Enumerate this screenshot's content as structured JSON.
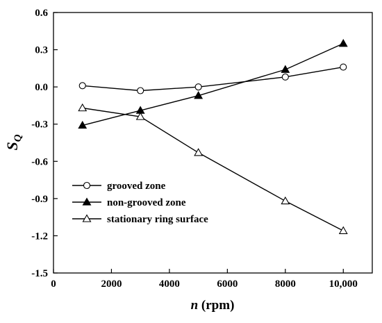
{
  "chart_data": {
    "type": "line",
    "xlim": [
      0,
      11000
    ],
    "ylim": [
      -1.5,
      0.6
    ],
    "x_ticks": [
      0,
      2000,
      4000,
      6000,
      8000,
      10000
    ],
    "x_tick_labels": [
      "0",
      "2000",
      "4000",
      "6000",
      "8000",
      "10,000"
    ],
    "y_ticks": [
      0.6,
      0.3,
      0.0,
      -0.3,
      -0.6,
      -0.9,
      -1.2,
      -1.5
    ],
    "y_tick_labels": [
      "0.6",
      "0.3",
      "0.0",
      "-0.3",
      "-0.6",
      "-0.9",
      "-1.2",
      "-1.5"
    ],
    "xlabel_var": "n",
    "xlabel_unit": " (rpm)",
    "ylabel_main": "S",
    "ylabel_sub": "Q",
    "grid": false,
    "legend_position": "bottom-left",
    "series": [
      {
        "name": "grooved zone",
        "marker": "circle-open",
        "x": [
          1000,
          3000,
          5000,
          8000,
          10000
        ],
        "y": [
          0.01,
          -0.03,
          0.0,
          0.08,
          0.16
        ]
      },
      {
        "name": "non-grooved zone",
        "marker": "triangle-filled",
        "x": [
          1000,
          3000,
          5000,
          8000,
          10000
        ],
        "y": [
          -0.31,
          -0.19,
          -0.07,
          0.14,
          0.35
        ]
      },
      {
        "name": "stationary ring surface",
        "marker": "triangle-open",
        "x": [
          1000,
          3000,
          5000,
          8000,
          10000
        ],
        "y": [
          -0.17,
          -0.24,
          -0.53,
          -0.92,
          -1.16
        ]
      }
    ],
    "line_color": "#000000"
  }
}
